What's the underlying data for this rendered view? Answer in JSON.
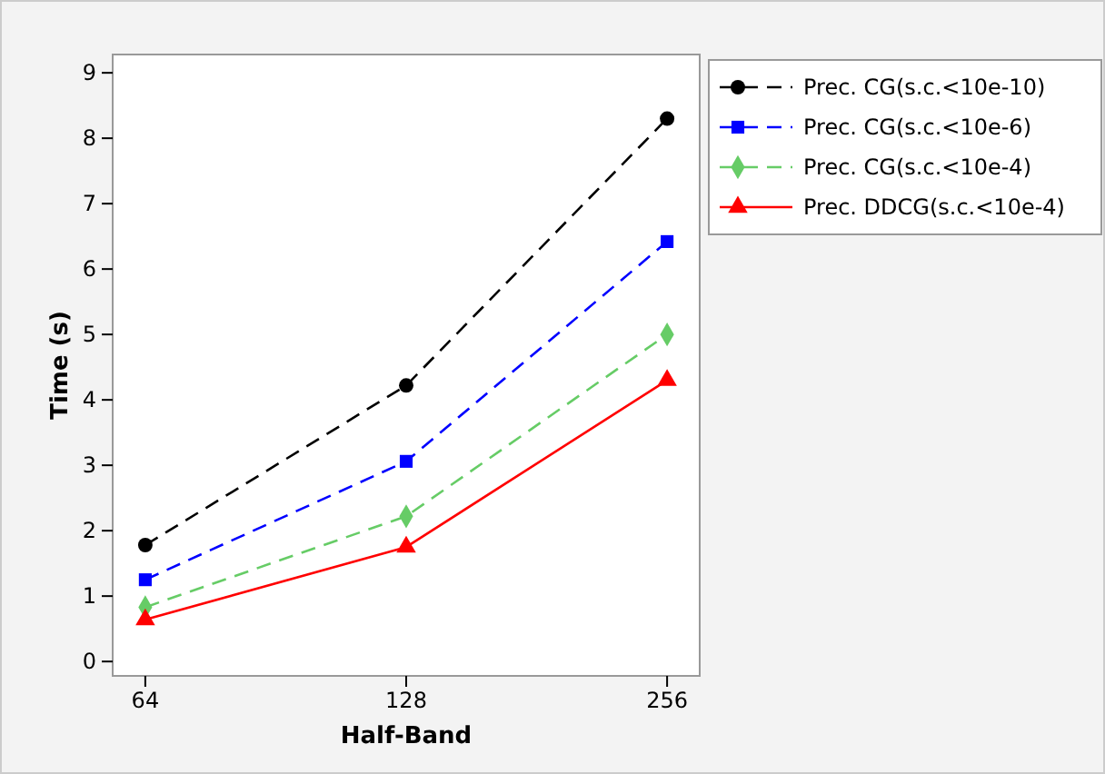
{
  "chart_data": {
    "type": "line",
    "xlabel": "Half-Band",
    "ylabel": "Time (s)",
    "categories": [
      "64",
      "128",
      "256"
    ],
    "ylim": [
      -0.22,
      9.28
    ],
    "yticks": [
      0,
      1,
      2,
      3,
      4,
      5,
      6,
      7,
      8,
      9
    ],
    "legend": "top right",
    "series": [
      {
        "name": "Prec. CG(s.c.<10e-10)",
        "color": "#000000",
        "values": [
          1.78,
          4.22,
          8.3
        ],
        "marker": "circle",
        "line_style": "dashed"
      },
      {
        "name": "Prec. CG(s.c.<10e-6)",
        "color": "#0000ff",
        "values": [
          1.25,
          3.06,
          6.42
        ],
        "marker": "square",
        "line_style": "dashed"
      },
      {
        "name": "Prec. CG(s.c.<10e-4)",
        "color": "#66cc66",
        "values": [
          0.83,
          2.22,
          5.0
        ],
        "marker": "diamond",
        "line_style": "dashed"
      },
      {
        "name": "Prec. DDCG(s.c.<10e-4)",
        "color": "#ff0000",
        "values": [
          0.64,
          1.75,
          4.3
        ],
        "marker": "triangle",
        "line_style": "solid"
      }
    ]
  }
}
